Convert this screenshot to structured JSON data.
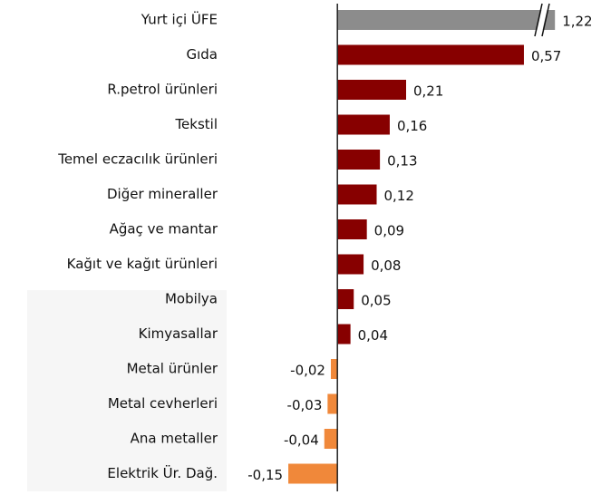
{
  "chart_data": {
    "type": "hbar",
    "categories": [
      "Yurt içi ÜFE",
      "Gıda",
      "R.petrol ürünleri",
      "Tekstil",
      "Temel eczacılık ürünleri",
      "Diğer mineraller",
      "Ağaç ve mantar",
      "Kağıt ve kağıt ürünleri",
      "Mobilya",
      "Kimyasallar",
      "Metal ürünler",
      "Metal cevherleri",
      "Ana metaller",
      "Elektrik Ür. Dağ."
    ],
    "values": [
      1.22,
      0.57,
      0.21,
      0.16,
      0.13,
      0.12,
      0.09,
      0.08,
      0.05,
      0.04,
      -0.02,
      -0.03,
      -0.04,
      -0.15
    ],
    "value_labels": [
      "1,22",
      "0,57",
      "0,21",
      "0,16",
      "0,13",
      "0,12",
      "0,09",
      "0,08",
      "0,05",
      "0,04",
      "-0,02",
      "-0,03",
      "-0,04",
      "-0,15"
    ],
    "colors": [
      "#8c8c8c",
      "#870000",
      "#870000",
      "#870000",
      "#870000",
      "#870000",
      "#870000",
      "#870000",
      "#870000",
      "#870000",
      "#f0883a",
      "#f0883a",
      "#f0883a",
      "#f0883a"
    ],
    "xlim": [
      -0.2,
      0.62
    ],
    "axis_break": true
  }
}
